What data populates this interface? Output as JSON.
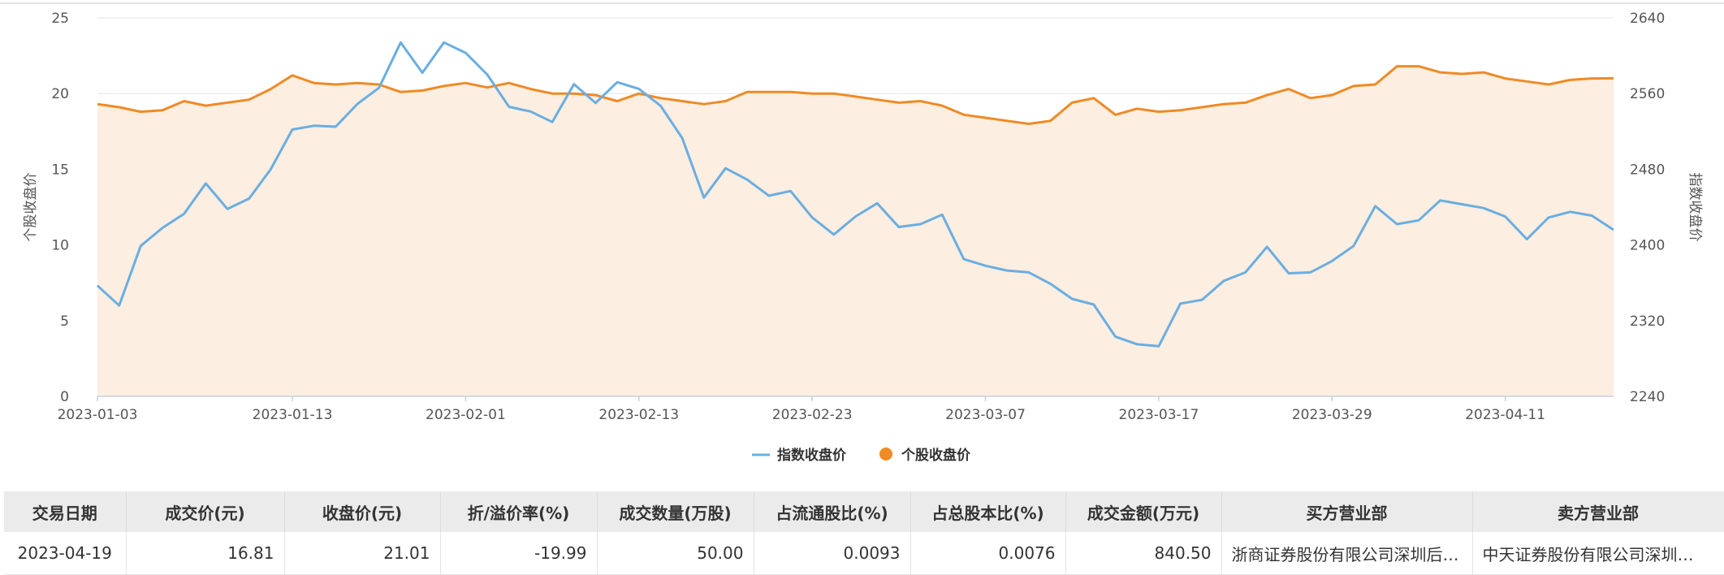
{
  "colors": {
    "index_line": "#6aaee0",
    "stock_line": "#f08a24",
    "stock_area": "#fdeee2",
    "grid": "#e6e6e6",
    "axis": "#c6d0da"
  },
  "chart_data": {
    "type": "line",
    "x_ticks": [
      "2023-01-03",
      "2023-01-13",
      "2023-02-01",
      "2023-02-13",
      "2023-02-23",
      "2023-03-07",
      "2023-03-17",
      "2023-03-29",
      "2023-04-11"
    ],
    "y_left": {
      "label": "个股收盘价",
      "range": [
        0,
        25
      ],
      "ticks": [
        "0",
        "5",
        "10",
        "15",
        "20",
        "25"
      ]
    },
    "y_right": {
      "label": "指数收盘价",
      "range": [
        2240,
        2640
      ],
      "ticks": [
        "2240",
        "2320",
        "2400",
        "2480",
        "2560",
        "2640"
      ]
    },
    "grid": true,
    "legend_position": "bottom-center",
    "series": [
      {
        "name": "指数收盘价",
        "axis": "right",
        "style": "line",
        "values": [
          2357,
          2336,
          2399,
          2418,
          2433,
          2465,
          2438,
          2449,
          2480,
          2522,
          2526,
          2525,
          2549,
          2566,
          2614,
          2582,
          2614,
          2603,
          2580,
          2546,
          2541,
          2530,
          2570,
          2550,
          2572,
          2565,
          2547,
          2513,
          2450,
          2481,
          2469,
          2452,
          2457,
          2429,
          2411,
          2430,
          2444,
          2419,
          2422,
          2432,
          2385,
          2378,
          2373,
          2371,
          2359,
          2343,
          2337,
          2303,
          2295,
          2293,
          2338,
          2342,
          2362,
          2371,
          2398,
          2370,
          2371,
          2383,
          2399,
          2441,
          2422,
          2426,
          2447,
          2443,
          2439,
          2430,
          2406,
          2429,
          2435,
          2431,
          2416
        ]
      },
      {
        "name": "个股收盘价",
        "axis": "left",
        "style": "area",
        "values": [
          19.3,
          19.1,
          18.8,
          18.9,
          19.5,
          19.2,
          19.4,
          19.6,
          20.3,
          21.2,
          20.7,
          20.6,
          20.7,
          20.6,
          20.1,
          20.2,
          20.5,
          20.7,
          20.4,
          20.7,
          20.3,
          20.0,
          20.0,
          19.9,
          19.5,
          20.0,
          19.7,
          19.5,
          19.3,
          19.5,
          20.1,
          20.1,
          20.1,
          20.0,
          20.0,
          19.8,
          19.6,
          19.4,
          19.5,
          19.2,
          18.6,
          18.4,
          18.2,
          18.0,
          18.2,
          19.4,
          19.7,
          18.6,
          19.0,
          18.8,
          18.9,
          19.1,
          19.3,
          19.4,
          19.9,
          20.3,
          19.7,
          19.9,
          20.5,
          20.6,
          21.8,
          21.8,
          21.4,
          21.3,
          21.4,
          21.0,
          20.8,
          20.6,
          20.9,
          21.0,
          21.01
        ]
      }
    ]
  },
  "table": {
    "headers": [
      "交易日期",
      "成交价(元)",
      "收盘价(元)",
      "折/溢价率(%)",
      "成交数量(万股)",
      "占流通股比(%)",
      "占总股本比(%)",
      "成交金额(万元)",
      "买方营业部",
      "卖方营业部"
    ],
    "rows": [
      [
        "2023-04-19",
        "16.81",
        "21.01",
        "-19.99",
        "50.00",
        "0.0093",
        "0.0076",
        "840.50",
        "浙商证券股份有限公司深圳后…",
        "中天证券股份有限公司深圳…"
      ]
    ]
  }
}
